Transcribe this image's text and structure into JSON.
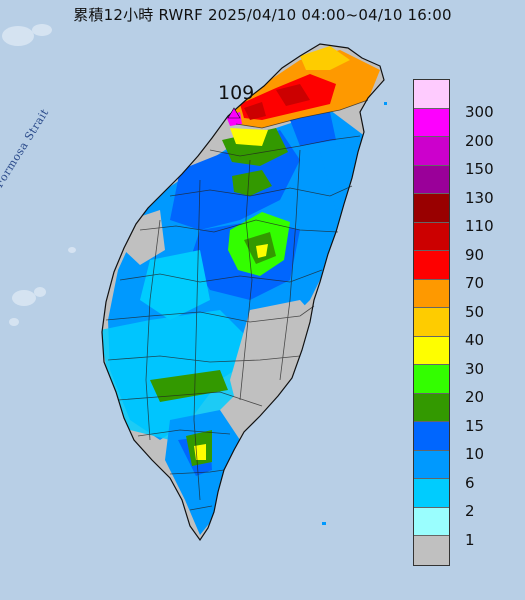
{
  "title": "累積12小時 RWRF 2025/04/10 04:00~04/10 16:00",
  "max_marker": "109",
  "strait_label": "Formosa Strait",
  "legend": {
    "levels": [
      {
        "label": "300",
        "color": "#fecbfe"
      },
      {
        "label": "200",
        "color": "#fd00fe"
      },
      {
        "label": "150",
        "color": "#cc00cc"
      },
      {
        "label": "130",
        "color": "#9a0099"
      },
      {
        "label": "110",
        "color": "#990000"
      },
      {
        "label": "90",
        "color": "#cc0000"
      },
      {
        "label": "70",
        "color": "#fe0000"
      },
      {
        "label": "50",
        "color": "#fe9900"
      },
      {
        "label": "40",
        "color": "#fecc00"
      },
      {
        "label": "30",
        "color": "#fefe00"
      },
      {
        "label": "20",
        "color": "#33fe00"
      },
      {
        "label": "15",
        "color": "#339900"
      },
      {
        "label": "10",
        "color": "#0066fe"
      },
      {
        "label": "6",
        "color": "#0099fe"
      },
      {
        "label": "2",
        "color": "#00ccfe"
      },
      {
        "label": "1",
        "color": "#9afefe"
      },
      {
        "label": "",
        "color": "#c0c0c0"
      }
    ]
  },
  "colors": {
    "sea": "#b8cfe6",
    "no_rain": "#c0c0c0"
  }
}
